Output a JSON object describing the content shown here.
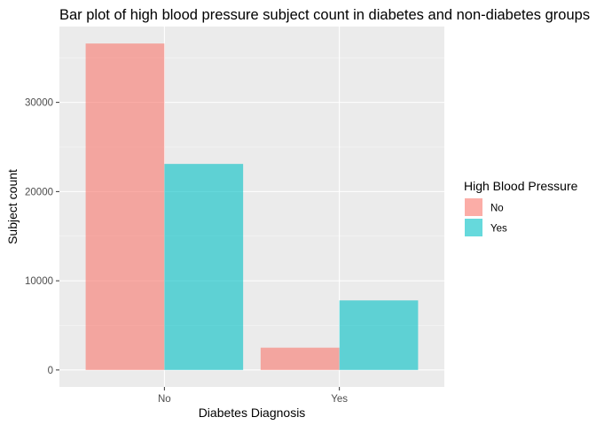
{
  "chart_data": {
    "type": "bar",
    "title": "Bar plot of high blood pressure subject count in diabetes and non-diabetes groups",
    "xlabel": "Diabetes Diagnosis",
    "ylabel": "Subject count",
    "categories": [
      "No",
      "Yes"
    ],
    "series": [
      {
        "name": "No",
        "color": "#F8766D",
        "values": [
          36600,
          2500
        ]
      },
      {
        "name": "Yes",
        "color": "#00BFC4",
        "values": [
          23100,
          7800
        ]
      }
    ],
    "ylim": [
      -1900,
      38500
    ],
    "yticks": [
      0,
      10000,
      20000,
      30000
    ],
    "ytick_labels": [
      "0",
      "10000",
      "20000",
      "30000"
    ],
    "grid": true,
    "bar_opacity": 0.6,
    "legend": {
      "title": "High Blood Pressure",
      "placement": "right",
      "items": [
        "No",
        "Yes"
      ]
    }
  }
}
